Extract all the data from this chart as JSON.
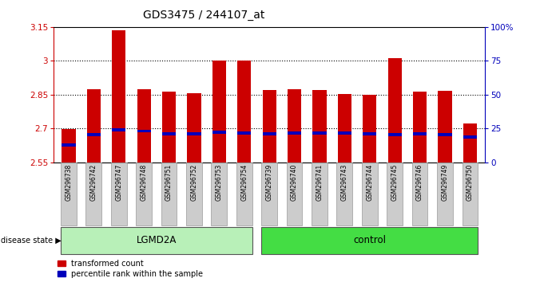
{
  "title": "GDS3475 / 244107_at",
  "samples": [
    "GSM296738",
    "GSM296742",
    "GSM296747",
    "GSM296748",
    "GSM296751",
    "GSM296752",
    "GSM296753",
    "GSM296754",
    "GSM296739",
    "GSM296740",
    "GSM296741",
    "GSM296743",
    "GSM296744",
    "GSM296745",
    "GSM296746",
    "GSM296749",
    "GSM296750"
  ],
  "bar_values": [
    2.695,
    2.875,
    3.135,
    2.875,
    2.862,
    2.857,
    3.0,
    3.0,
    2.868,
    2.875,
    2.87,
    2.853,
    2.848,
    3.01,
    2.862,
    2.865,
    2.72
  ],
  "blue_marker_values": [
    2.627,
    2.672,
    2.694,
    2.688,
    2.676,
    2.676,
    2.682,
    2.679,
    2.676,
    2.679,
    2.679,
    2.679,
    2.676,
    2.673,
    2.676,
    2.673,
    2.661
  ],
  "bar_bottom": 2.55,
  "ylim_left": [
    2.55,
    3.15
  ],
  "ylim_right": [
    0,
    100
  ],
  "yticks_left": [
    2.55,
    2.7,
    2.85,
    3.0,
    3.15
  ],
  "ytick_labels_left": [
    "2.55",
    "2.7",
    "2.85",
    "3",
    "3.15"
  ],
  "yticks_right": [
    0,
    25,
    50,
    75,
    100
  ],
  "ytick_labels_right": [
    "0",
    "25",
    "50",
    "75",
    "100%"
  ],
  "groups": [
    {
      "label": "LGMD2A",
      "start": 0,
      "end": 7,
      "color": "#b8f0b8"
    },
    {
      "label": "control",
      "start": 8,
      "end": 16,
      "color": "#44dd44"
    }
  ],
  "disease_state_label": "disease state",
  "bar_color": "#CC0000",
  "blue_color": "#0000BB",
  "bar_width": 0.55,
  "xticklabel_bg": "#cccccc",
  "legend_items": [
    "transformed count",
    "percentile rank within the sample"
  ],
  "left_axis_color": "#CC0000",
  "right_axis_color": "#0000BB"
}
